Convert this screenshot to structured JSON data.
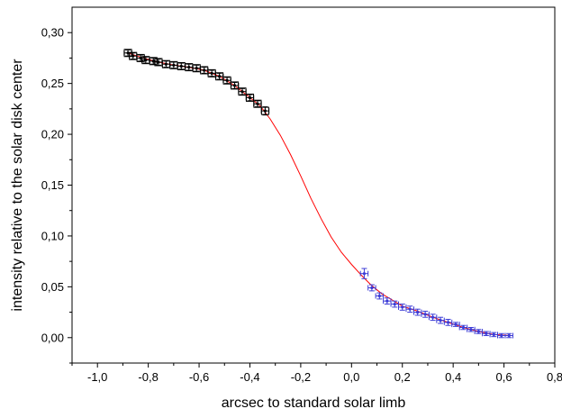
{
  "chart_data": {
    "type": "scatter",
    "title": "",
    "xlabel": "arcsec to standard solar limb",
    "ylabel": "intensity relative to the solar disk center",
    "xlim": [
      -1.1,
      0.8
    ],
    "ylim": [
      -0.025,
      0.325
    ],
    "x_ticks": [
      -1.0,
      -0.8,
      -0.6,
      -0.4,
      -0.2,
      0.0,
      0.2,
      0.4,
      0.6,
      0.8
    ],
    "x_tick_labels": [
      "-1,0",
      "-0,8",
      "-0,6",
      "-0,4",
      "-0,2",
      "0,0",
      "0,2",
      "0,4",
      "0,6",
      "0,8"
    ],
    "y_ticks": [
      0.0,
      0.05,
      0.1,
      0.15,
      0.2,
      0.25,
      0.3
    ],
    "y_tick_labels": [
      "0,00",
      "0,05",
      "0,10",
      "0,15",
      "0,20",
      "0,25",
      "0,30"
    ],
    "grid": false,
    "legend": "none",
    "colors": {
      "series_black": "#000000",
      "series_blue": "#3b3bd6",
      "fit_curve": "#ff0000"
    },
    "series": [
      {
        "marker": "square-with-errorbars",
        "color": "#000000",
        "points": [
          {
            "x": -0.88,
            "y": 0.28,
            "ex": 0.015,
            "ey": 0.003
          },
          {
            "x": -0.86,
            "y": 0.277,
            "ex": 0.015,
            "ey": 0.003
          },
          {
            "x": -0.83,
            "y": 0.275,
            "ex": 0.015,
            "ey": 0.003
          },
          {
            "x": -0.81,
            "y": 0.273,
            "ex": 0.015,
            "ey": 0.003
          },
          {
            "x": -0.78,
            "y": 0.272,
            "ex": 0.015,
            "ey": 0.003
          },
          {
            "x": -0.76,
            "y": 0.271,
            "ex": 0.015,
            "ey": 0.003
          },
          {
            "x": -0.73,
            "y": 0.269,
            "ex": 0.015,
            "ey": 0.003
          },
          {
            "x": -0.7,
            "y": 0.268,
            "ex": 0.015,
            "ey": 0.003
          },
          {
            "x": -0.67,
            "y": 0.267,
            "ex": 0.015,
            "ey": 0.003
          },
          {
            "x": -0.64,
            "y": 0.266,
            "ex": 0.015,
            "ey": 0.003
          },
          {
            "x": -0.61,
            "y": 0.265,
            "ex": 0.015,
            "ey": 0.003
          },
          {
            "x": -0.58,
            "y": 0.263,
            "ex": 0.015,
            "ey": 0.003
          },
          {
            "x": -0.55,
            "y": 0.26,
            "ex": 0.015,
            "ey": 0.003
          },
          {
            "x": -0.52,
            "y": 0.257,
            "ex": 0.015,
            "ey": 0.003
          },
          {
            "x": -0.49,
            "y": 0.253,
            "ex": 0.015,
            "ey": 0.003
          },
          {
            "x": -0.46,
            "y": 0.248,
            "ex": 0.015,
            "ey": 0.003
          },
          {
            "x": -0.43,
            "y": 0.242,
            "ex": 0.015,
            "ey": 0.003
          },
          {
            "x": -0.4,
            "y": 0.236,
            "ex": 0.015,
            "ey": 0.003
          },
          {
            "x": -0.37,
            "y": 0.23,
            "ex": 0.015,
            "ey": 0.003
          },
          {
            "x": -0.34,
            "y": 0.223,
            "ex": 0.015,
            "ey": 0.004
          }
        ]
      },
      {
        "marker": "dot-with-errorbars",
        "color": "#3b3bd6",
        "points": [
          {
            "x": 0.05,
            "y": 0.063,
            "ex": 0.015,
            "ey": 0.005
          },
          {
            "x": 0.08,
            "y": 0.049,
            "ex": 0.015,
            "ey": 0.003
          },
          {
            "x": 0.11,
            "y": 0.041,
            "ex": 0.015,
            "ey": 0.003
          },
          {
            "x": 0.14,
            "y": 0.036,
            "ex": 0.015,
            "ey": 0.003
          },
          {
            "x": 0.17,
            "y": 0.033,
            "ex": 0.015,
            "ey": 0.003
          },
          {
            "x": 0.2,
            "y": 0.03,
            "ex": 0.015,
            "ey": 0.003
          },
          {
            "x": 0.23,
            "y": 0.028,
            "ex": 0.015,
            "ey": 0.003
          },
          {
            "x": 0.26,
            "y": 0.025,
            "ex": 0.015,
            "ey": 0.003
          },
          {
            "x": 0.29,
            "y": 0.023,
            "ex": 0.015,
            "ey": 0.003
          },
          {
            "x": 0.32,
            "y": 0.02,
            "ex": 0.015,
            "ey": 0.003
          },
          {
            "x": 0.35,
            "y": 0.017,
            "ex": 0.015,
            "ey": 0.003
          },
          {
            "x": 0.38,
            "y": 0.015,
            "ex": 0.015,
            "ey": 0.003
          },
          {
            "x": 0.41,
            "y": 0.013,
            "ex": 0.015,
            "ey": 0.002
          },
          {
            "x": 0.44,
            "y": 0.01,
            "ex": 0.015,
            "ey": 0.002
          },
          {
            "x": 0.47,
            "y": 0.008,
            "ex": 0.015,
            "ey": 0.002
          },
          {
            "x": 0.5,
            "y": 0.006,
            "ex": 0.015,
            "ey": 0.002
          },
          {
            "x": 0.53,
            "y": 0.004,
            "ex": 0.015,
            "ey": 0.002
          },
          {
            "x": 0.56,
            "y": 0.003,
            "ex": 0.015,
            "ey": 0.002
          },
          {
            "x": 0.59,
            "y": 0.002,
            "ex": 0.015,
            "ey": 0.002
          },
          {
            "x": 0.62,
            "y": 0.002,
            "ex": 0.015,
            "ey": 0.002
          }
        ]
      }
    ],
    "fit_curve": {
      "type": "line",
      "color": "#ff0000",
      "x": [
        -0.88,
        -0.82,
        -0.76,
        -0.7,
        -0.64,
        -0.58,
        -0.52,
        -0.46,
        -0.4,
        -0.36,
        -0.32,
        -0.28,
        -0.24,
        -0.2,
        -0.16,
        -0.12,
        -0.08,
        -0.04,
        0.0,
        0.04,
        0.08,
        0.12,
        0.16,
        0.2,
        0.26,
        0.32,
        0.38,
        0.44,
        0.5,
        0.56,
        0.63
      ],
      "y": [
        0.28,
        0.275,
        0.271,
        0.268,
        0.266,
        0.263,
        0.257,
        0.248,
        0.236,
        0.228,
        0.215,
        0.199,
        0.18,
        0.159,
        0.137,
        0.117,
        0.099,
        0.084,
        0.072,
        0.061,
        0.051,
        0.043,
        0.037,
        0.031,
        0.026,
        0.02,
        0.015,
        0.01,
        0.006,
        0.003,
        0.002
      ]
    }
  }
}
